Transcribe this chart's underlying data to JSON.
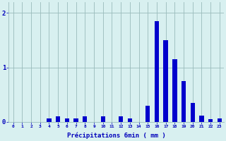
{
  "hours": [
    0,
    1,
    2,
    3,
    4,
    5,
    6,
    7,
    8,
    9,
    10,
    11,
    12,
    13,
    14,
    15,
    16,
    17,
    18,
    19,
    20,
    21,
    22,
    23
  ],
  "values": [
    0,
    0,
    0,
    0,
    0.06,
    0.1,
    0.06,
    0.06,
    0.1,
    0,
    0.1,
    0,
    0.1,
    0.06,
    0,
    0.3,
    1.85,
    1.5,
    1.15,
    0.75,
    0.35,
    0.12,
    0.05,
    0.06
  ],
  "bar_color": "#0000cc",
  "bg_color": "#d8f0f0",
  "grid_color": "#99bbbb",
  "axis_color": "#0000bb",
  "xlabel": "Précipitations 6min ( mm )",
  "ylim": [
    0,
    2.2
  ],
  "yticks": [
    0,
    1,
    2
  ]
}
